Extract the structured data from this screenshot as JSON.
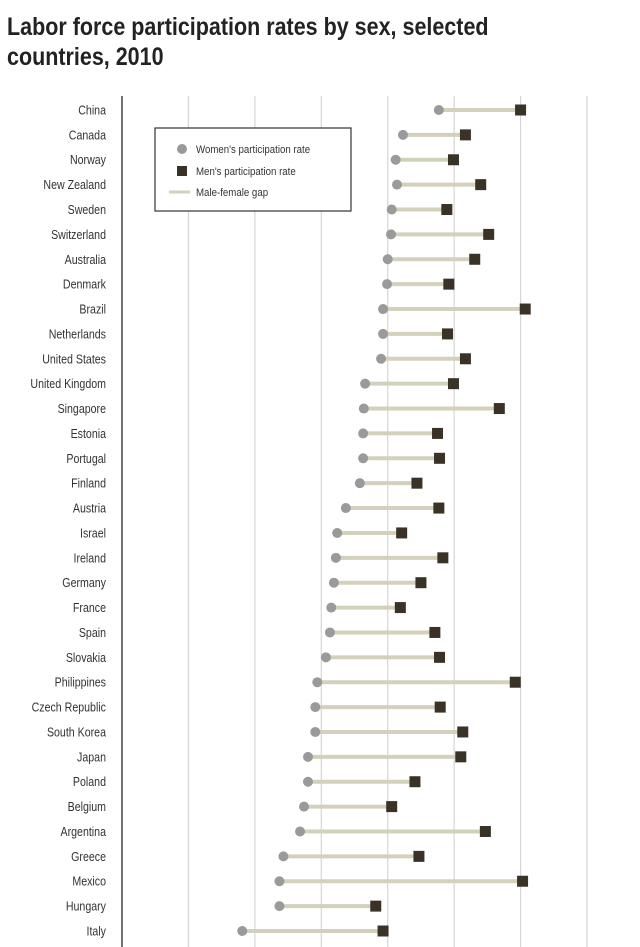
{
  "title": "Labor force participation rates by sex, selected countries, 2010",
  "chart_data": {
    "type": "dumbbell",
    "title": "Labor force participation rates by sex, selected countries, 2010",
    "xlabel": "",
    "ylabel": "",
    "xlim": [
      20,
      90
    ],
    "x_gridlines": [
      30,
      40,
      50,
      60,
      70,
      80,
      90
    ],
    "grid": true,
    "tick_labels_shown": false,
    "legend": {
      "placement": "top-left",
      "entries": [
        {
          "key": "women",
          "label": "Women's participation rate",
          "marker": "circle",
          "color": "#9a9a9a"
        },
        {
          "key": "men",
          "label": "Men's participation rate",
          "marker": "square",
          "color": "#3b3227"
        },
        {
          "key": "gap",
          "label": "Male-female gap",
          "marker": "line",
          "color": "#d3d0bb"
        }
      ]
    },
    "categories": [
      "China",
      "Canada",
      "Norway",
      "New Zealand",
      "Sweden",
      "Switzerland",
      "Australia",
      "Denmark",
      "Brazil",
      "Netherlands",
      "United States",
      "United Kingdom",
      "Singapore",
      "Estonia",
      "Portugal",
      "Finland",
      "Austria",
      "Israel",
      "Ireland",
      "Germany",
      "France",
      "Spain",
      "Slovakia",
      "Philippines",
      "Czech Republic",
      "South Korea",
      "Japan",
      "Poland",
      "Belgium",
      "Argentina",
      "Greece",
      "Mexico",
      "Hungary",
      "Italy"
    ],
    "series": [
      {
        "name": "Women's participation rate",
        "values": [
          67.7,
          62.3,
          61.2,
          61.4,
          60.6,
          60.5,
          60.0,
          59.9,
          59.3,
          59.3,
          59.0,
          56.6,
          56.4,
          56.3,
          56.3,
          55.8,
          53.7,
          52.4,
          52.2,
          51.9,
          51.5,
          51.3,
          50.7,
          49.4,
          49.1,
          49.1,
          48.0,
          48.0,
          47.4,
          46.8,
          44.3,
          43.7,
          43.7,
          38.1
        ]
      },
      {
        "name": "Men's participation rate",
        "values": [
          80.0,
          71.7,
          69.9,
          74.0,
          68.9,
          75.2,
          73.1,
          69.2,
          80.7,
          69.0,
          71.7,
          69.9,
          76.8,
          67.5,
          67.8,
          64.4,
          67.7,
          62.1,
          68.3,
          65.0,
          61.9,
          67.1,
          67.8,
          79.2,
          67.9,
          71.3,
          71.0,
          64.1,
          60.6,
          74.7,
          64.7,
          80.3,
          58.2,
          59.3
        ]
      }
    ]
  }
}
